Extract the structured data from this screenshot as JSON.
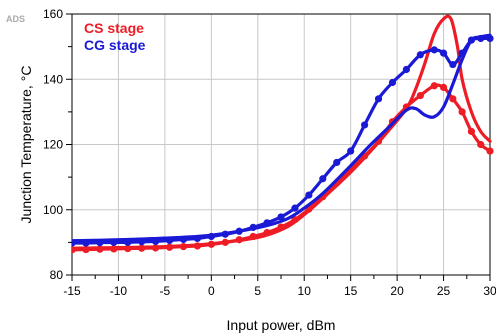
{
  "watermark": "ADS",
  "chart_data": {
    "type": "line",
    "xlabel": "Input power, dBm",
    "ylabel": "Junction Temperature, °C",
    "xlim": [
      -15,
      30
    ],
    "ylim": [
      80,
      160
    ],
    "x_ticks": [
      -15,
      -10,
      -5,
      0,
      5,
      10,
      15,
      20,
      25,
      30
    ],
    "y_ticks": [
      80,
      100,
      120,
      140,
      160
    ],
    "grid": true,
    "legend_position": "top-left",
    "colors": {
      "cs": "#ee1c25",
      "cg": "#1a1ad6"
    },
    "legend": [
      {
        "label": "CS stage",
        "color": "#ee1c25"
      },
      {
        "label": "CG stage",
        "color": "#1a1ad6"
      }
    ],
    "series": [
      {
        "name": "CS stage",
        "group": "cs",
        "markers": false,
        "points": [
          [
            -15,
            88.2
          ],
          [
            -10,
            88.4
          ],
          [
            -5,
            88.7
          ],
          [
            0,
            89.6
          ],
          [
            5,
            91.5
          ],
          [
            8,
            94.5
          ],
          [
            10,
            98.5
          ],
          [
            12,
            103.5
          ],
          [
            15,
            111.5
          ],
          [
            17,
            117.5
          ],
          [
            19,
            124
          ],
          [
            21,
            131
          ],
          [
            22,
            137
          ],
          [
            23,
            145
          ],
          [
            24,
            154
          ],
          [
            25,
            158.5
          ],
          [
            25.8,
            158.5
          ],
          [
            26.5,
            150
          ],
          [
            27,
            140
          ],
          [
            28,
            130
          ],
          [
            29,
            124
          ],
          [
            30,
            121
          ]
        ]
      },
      {
        "name": "CS stage",
        "group": "cs",
        "markers": true,
        "points": [
          [
            -15,
            87.7
          ],
          [
            -13.5,
            87.8
          ],
          [
            -12,
            87.9
          ],
          [
            -10.5,
            88
          ],
          [
            -9,
            88.1
          ],
          [
            -7.5,
            88.2
          ],
          [
            -6,
            88.3
          ],
          [
            -4.5,
            88.5
          ],
          [
            -3,
            88.7
          ],
          [
            -1.5,
            88.9
          ],
          [
            0,
            89.4
          ],
          [
            1.5,
            90
          ],
          [
            3,
            90.8
          ],
          [
            4.5,
            91.8
          ],
          [
            6,
            93
          ],
          [
            7.5,
            94.7
          ],
          [
            9,
            97
          ],
          [
            10.5,
            100.2
          ],
          [
            12,
            104
          ],
          [
            13.5,
            108.2
          ],
          [
            15,
            112.5
          ],
          [
            16.5,
            116.5
          ],
          [
            18,
            121
          ],
          [
            19.5,
            127
          ],
          [
            21,
            131.5
          ],
          [
            22.5,
            135
          ],
          [
            24,
            138
          ],
          [
            25,
            137.5
          ],
          [
            26,
            134
          ],
          [
            27,
            130
          ],
          [
            28,
            124
          ],
          [
            29,
            120
          ],
          [
            30,
            118
          ]
        ]
      },
      {
        "name": "CG stage",
        "group": "cg",
        "markers": false,
        "points": [
          [
            -15,
            90.5
          ],
          [
            -10,
            90.8
          ],
          [
            -5,
            91.3
          ],
          [
            0,
            92.2
          ],
          [
            5,
            94.5
          ],
          [
            8,
            97
          ],
          [
            10,
            100.5
          ],
          [
            12,
            105
          ],
          [
            15,
            113.5
          ],
          [
            17,
            119.5
          ],
          [
            19,
            125
          ],
          [
            21,
            130.5
          ],
          [
            22,
            131
          ],
          [
            23,
            129
          ],
          [
            24,
            128.5
          ],
          [
            25,
            131.5
          ],
          [
            26,
            138.5
          ],
          [
            27,
            146
          ],
          [
            28,
            152
          ],
          [
            29,
            153
          ],
          [
            30,
            153.5
          ]
        ]
      },
      {
        "name": "CG stage",
        "group": "cg",
        "markers": true,
        "points": [
          [
            -15,
            89.8
          ],
          [
            -13.5,
            89.8
          ],
          [
            -12,
            89.9
          ],
          [
            -10.5,
            90
          ],
          [
            -9,
            90
          ],
          [
            -7.5,
            90.2
          ],
          [
            -6,
            90.3
          ],
          [
            -4.5,
            90.6
          ],
          [
            -3,
            90.9
          ],
          [
            -1.5,
            91.2
          ],
          [
            0,
            91.8
          ],
          [
            1.5,
            92.5
          ],
          [
            3,
            93.4
          ],
          [
            4.5,
            94.6
          ],
          [
            6,
            96
          ],
          [
            7.5,
            97.8
          ],
          [
            9,
            100.5
          ],
          [
            10.5,
            104.5
          ],
          [
            12,
            109.5
          ],
          [
            13.5,
            114.5
          ],
          [
            15,
            118
          ],
          [
            16.5,
            126
          ],
          [
            18,
            134
          ],
          [
            19.5,
            139
          ],
          [
            21,
            143
          ],
          [
            22.5,
            147.5
          ],
          [
            24,
            149
          ],
          [
            25,
            148
          ],
          [
            26,
            144.5
          ],
          [
            27,
            148
          ],
          [
            28,
            152
          ],
          [
            29,
            152.5
          ],
          [
            30,
            152.5
          ]
        ]
      }
    ]
  }
}
